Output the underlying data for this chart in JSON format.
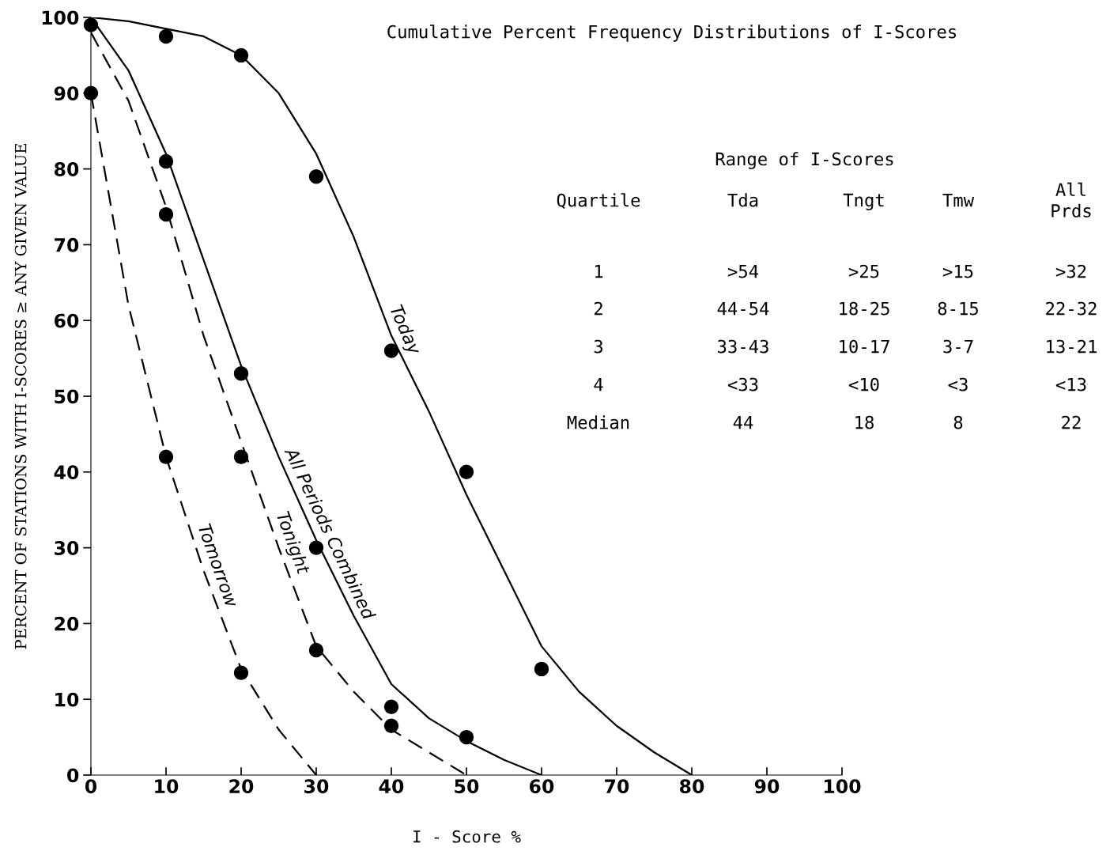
{
  "chart_data": {
    "type": "line",
    "title": "Cumulative Percent Frequency Distributions of I-Scores",
    "xlabel": "I - Score %",
    "ylabel": "PERCENT OF STATIONS WITH I-SCORES ≥ ANY GIVEN VALUE",
    "xlim": [
      0,
      100
    ],
    "ylim": [
      0,
      100
    ],
    "xticks": [
      0,
      10,
      20,
      30,
      40,
      50,
      60,
      70,
      80,
      90,
      100
    ],
    "yticks": [
      0,
      10,
      20,
      30,
      40,
      50,
      60,
      70,
      80,
      90,
      100
    ],
    "grid": false,
    "legend": false,
    "series": [
      {
        "name": "Today",
        "color": "#000000",
        "line_style": "solid",
        "marker": "none",
        "x": [
          0,
          5,
          10,
          15,
          20,
          25,
          30,
          35,
          40,
          45,
          50,
          55,
          60,
          65,
          70,
          75,
          80
        ],
        "values": [
          100,
          99.5,
          98.5,
          97.5,
          95,
          90,
          82,
          71,
          58,
          48,
          37,
          27,
          17,
          11,
          6.5,
          3,
          0
        ]
      },
      {
        "name": "All Periods Combined",
        "color": "#000000",
        "line_style": "solid",
        "marker": "none",
        "x": [
          0,
          5,
          10,
          15,
          20,
          25,
          30,
          35,
          40,
          45,
          50,
          55,
          60
        ],
        "values": [
          100,
          93,
          82,
          68,
          54,
          42,
          31,
          21,
          12,
          7.5,
          4.5,
          2,
          0
        ]
      },
      {
        "name": "Tonight",
        "color": "#000000",
        "line_style": "dashed",
        "marker": "none",
        "x": [
          0,
          5,
          10,
          15,
          20,
          25,
          30,
          35,
          40,
          45,
          50
        ],
        "values": [
          98,
          89,
          75,
          58,
          44,
          30,
          17,
          11,
          6,
          3,
          0
        ]
      },
      {
        "name": "Tomorrow",
        "color": "#000000",
        "line_style": "dashed",
        "marker": "none",
        "x": [
          0,
          5,
          10,
          15,
          20,
          25,
          30
        ],
        "values": [
          90,
          62,
          42,
          27,
          14,
          6,
          0
        ]
      },
      {
        "type": "scatter",
        "color": "#000000",
        "marker": "circle",
        "x": [
          0,
          0,
          10,
          20,
          30,
          40,
          50,
          60,
          10,
          10,
          10,
          20,
          20,
          20,
          30,
          30,
          40,
          40,
          50
        ],
        "values": [
          99,
          90,
          97.5,
          95,
          79,
          56,
          40,
          14,
          81,
          74,
          42,
          53,
          42,
          13.5,
          30,
          16.5,
          9,
          6.5,
          5
        ]
      }
    ],
    "annotations": [
      "Range of I-Scores",
      "Quartile",
      "Tda",
      "Tngt",
      "Tmw",
      "All\nPrds",
      "1",
      ">54",
      ">25",
      ">15",
      ">32",
      "2",
      "44-54",
      "18-25",
      "8-15",
      "22-32",
      "3",
      "33-43",
      "10-17",
      "3-7",
      "13-21",
      "4",
      "<33",
      "<10",
      "<3",
      "<13",
      "Median",
      "44",
      "18",
      "8",
      "22"
    ]
  }
}
